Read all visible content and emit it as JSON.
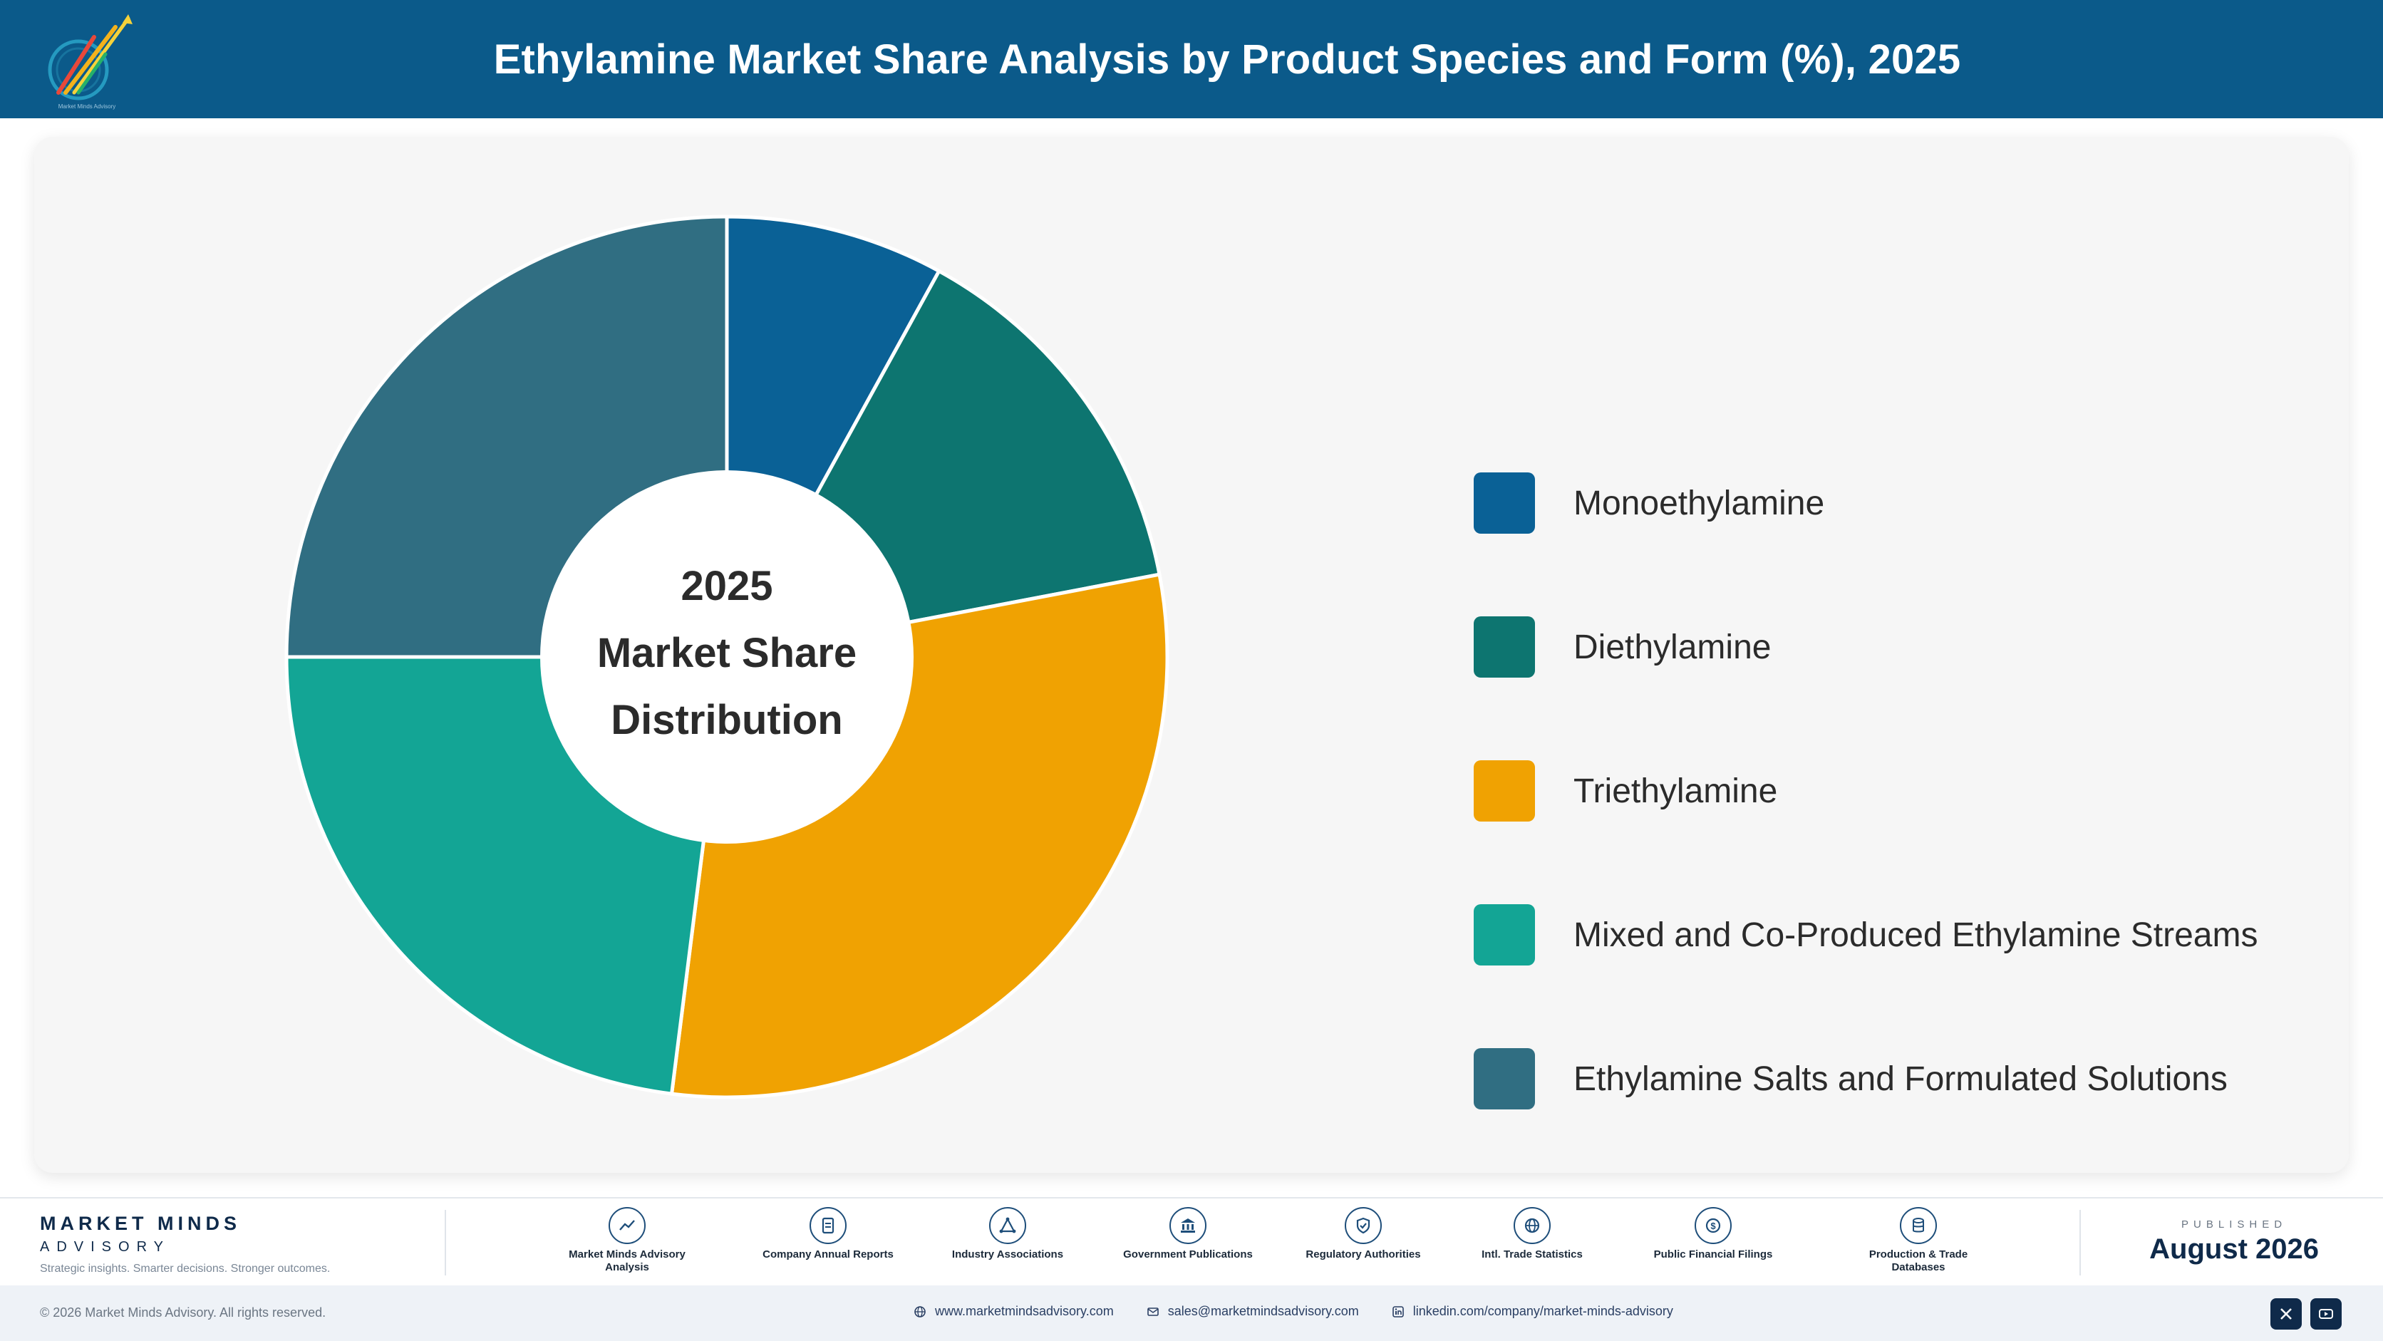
{
  "header": {
    "title": "Ethylamine Market Share Analysis by Product Species and Form (%), 2025"
  },
  "chart_data": {
    "type": "pie",
    "title": "Ethylamine Market Share Analysis by Product Species and Form (%), 2025",
    "center_label": [
      "2025",
      "Market Share",
      "Distribution"
    ],
    "categories": [
      "Monoethylamine",
      "Diethylamine",
      "Triethylamine",
      "Mixed and Co-Produced Ethylamine Streams",
      "Ethylamine Salts and Formulated Solutions"
    ],
    "values": [
      8,
      14,
      30,
      23,
      25
    ],
    "colors": [
      "#0a6196",
      "#0d7570",
      "#f0a202",
      "#13a595",
      "#306e82"
    ],
    "legend_position": "right"
  },
  "footer": {
    "brand_name": "MARKET MINDS",
    "brand_sub": "ADVISORY",
    "tagline": "Strategic insights. Smarter decisions. Stronger outcomes.",
    "sources": [
      {
        "icon": "trend-icon",
        "label": "Market Minds Advisory Analysis"
      },
      {
        "icon": "document-icon",
        "label": "Company Annual Reports"
      },
      {
        "icon": "network-icon",
        "label": "Industry Associations"
      },
      {
        "icon": "government-icon",
        "label": "Government Publications"
      },
      {
        "icon": "shield-icon",
        "label": "Regulatory Authorities"
      },
      {
        "icon": "globe-icon",
        "label": "Intl. Trade Statistics"
      },
      {
        "icon": "dollar-icon",
        "label": "Public Financial Filings"
      },
      {
        "icon": "database-icon",
        "label": "Production & Trade Databases"
      }
    ],
    "published_kicker": "PUBLISHED",
    "published_date": "August 2026"
  },
  "bottombar": {
    "copyright": "© 2026 Market Minds Advisory. All rights reserved.",
    "website": "www.marketmindsadvisory.com",
    "email": "sales@marketmindsadvisory.com",
    "linkedin": "linkedin.com/company/market-minds-advisory"
  }
}
